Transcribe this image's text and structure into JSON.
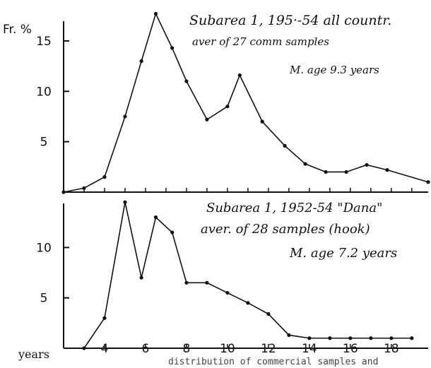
{
  "figure": {
    "y_unit_label": "Fr. %",
    "x_unit_label": "years",
    "caption_fragment": "distribution of commercial samples and"
  },
  "chart_data": [
    {
      "type": "line",
      "panel": "top",
      "title_lines": [
        "Subarea 1, 195·-54 all countr.",
        "aver of 27 comm samples",
        "M. age 9.3 years"
      ],
      "xlabel": "years",
      "ylabel": "Fr. %",
      "xlim": [
        2.0,
        19.8
      ],
      "ylim": [
        0,
        18.5
      ],
      "yticks": [
        5,
        10,
        15
      ],
      "grid": false,
      "series": [
        {
          "x": [
            2.0,
            3.0,
            4.0,
            5.0,
            5.8,
            6.5,
            7.3,
            8.0,
            9.0,
            10.0,
            10.6,
            11.7,
            12.8,
            13.8,
            14.8,
            15.8,
            16.8,
            17.8,
            19.8
          ],
          "values": [
            0.0,
            0.4,
            1.5,
            7.5,
            13.0,
            17.7,
            14.3,
            11.0,
            7.2,
            8.5,
            11.6,
            7.0,
            4.6,
            2.8,
            2.0,
            2.0,
            2.7,
            2.2,
            1.0
          ]
        }
      ]
    },
    {
      "type": "line",
      "panel": "bottom",
      "title_lines": [
        "Subarea 1, 1952-54 \"Dana\"",
        "aver. of 28 samples (hook)",
        "M. age 7.2 years"
      ],
      "xlabel": "years",
      "ylabel": "Fr. %",
      "xlim": [
        2.0,
        19.8
      ],
      "ylim": [
        0,
        15.5
      ],
      "yticks": [
        5,
        10
      ],
      "xticks": [
        4,
        6,
        8,
        10,
        12,
        14,
        16,
        18
      ],
      "grid": false,
      "series": [
        {
          "x": [
            3.0,
            4.0,
            5.0,
            5.8,
            6.5,
            7.3,
            8.0,
            9.0,
            10.0,
            11.0,
            12.0,
            13.0,
            14.0,
            15.0,
            16.0,
            17.0,
            18.0,
            19.0
          ],
          "values": [
            0.0,
            3.0,
            14.5,
            7.0,
            13.0,
            11.5,
            6.5,
            6.5,
            5.5,
            4.5,
            3.4,
            1.3,
            1.0,
            1.0,
            1.0,
            1.0,
            1.0,
            1.0
          ]
        }
      ]
    }
  ]
}
